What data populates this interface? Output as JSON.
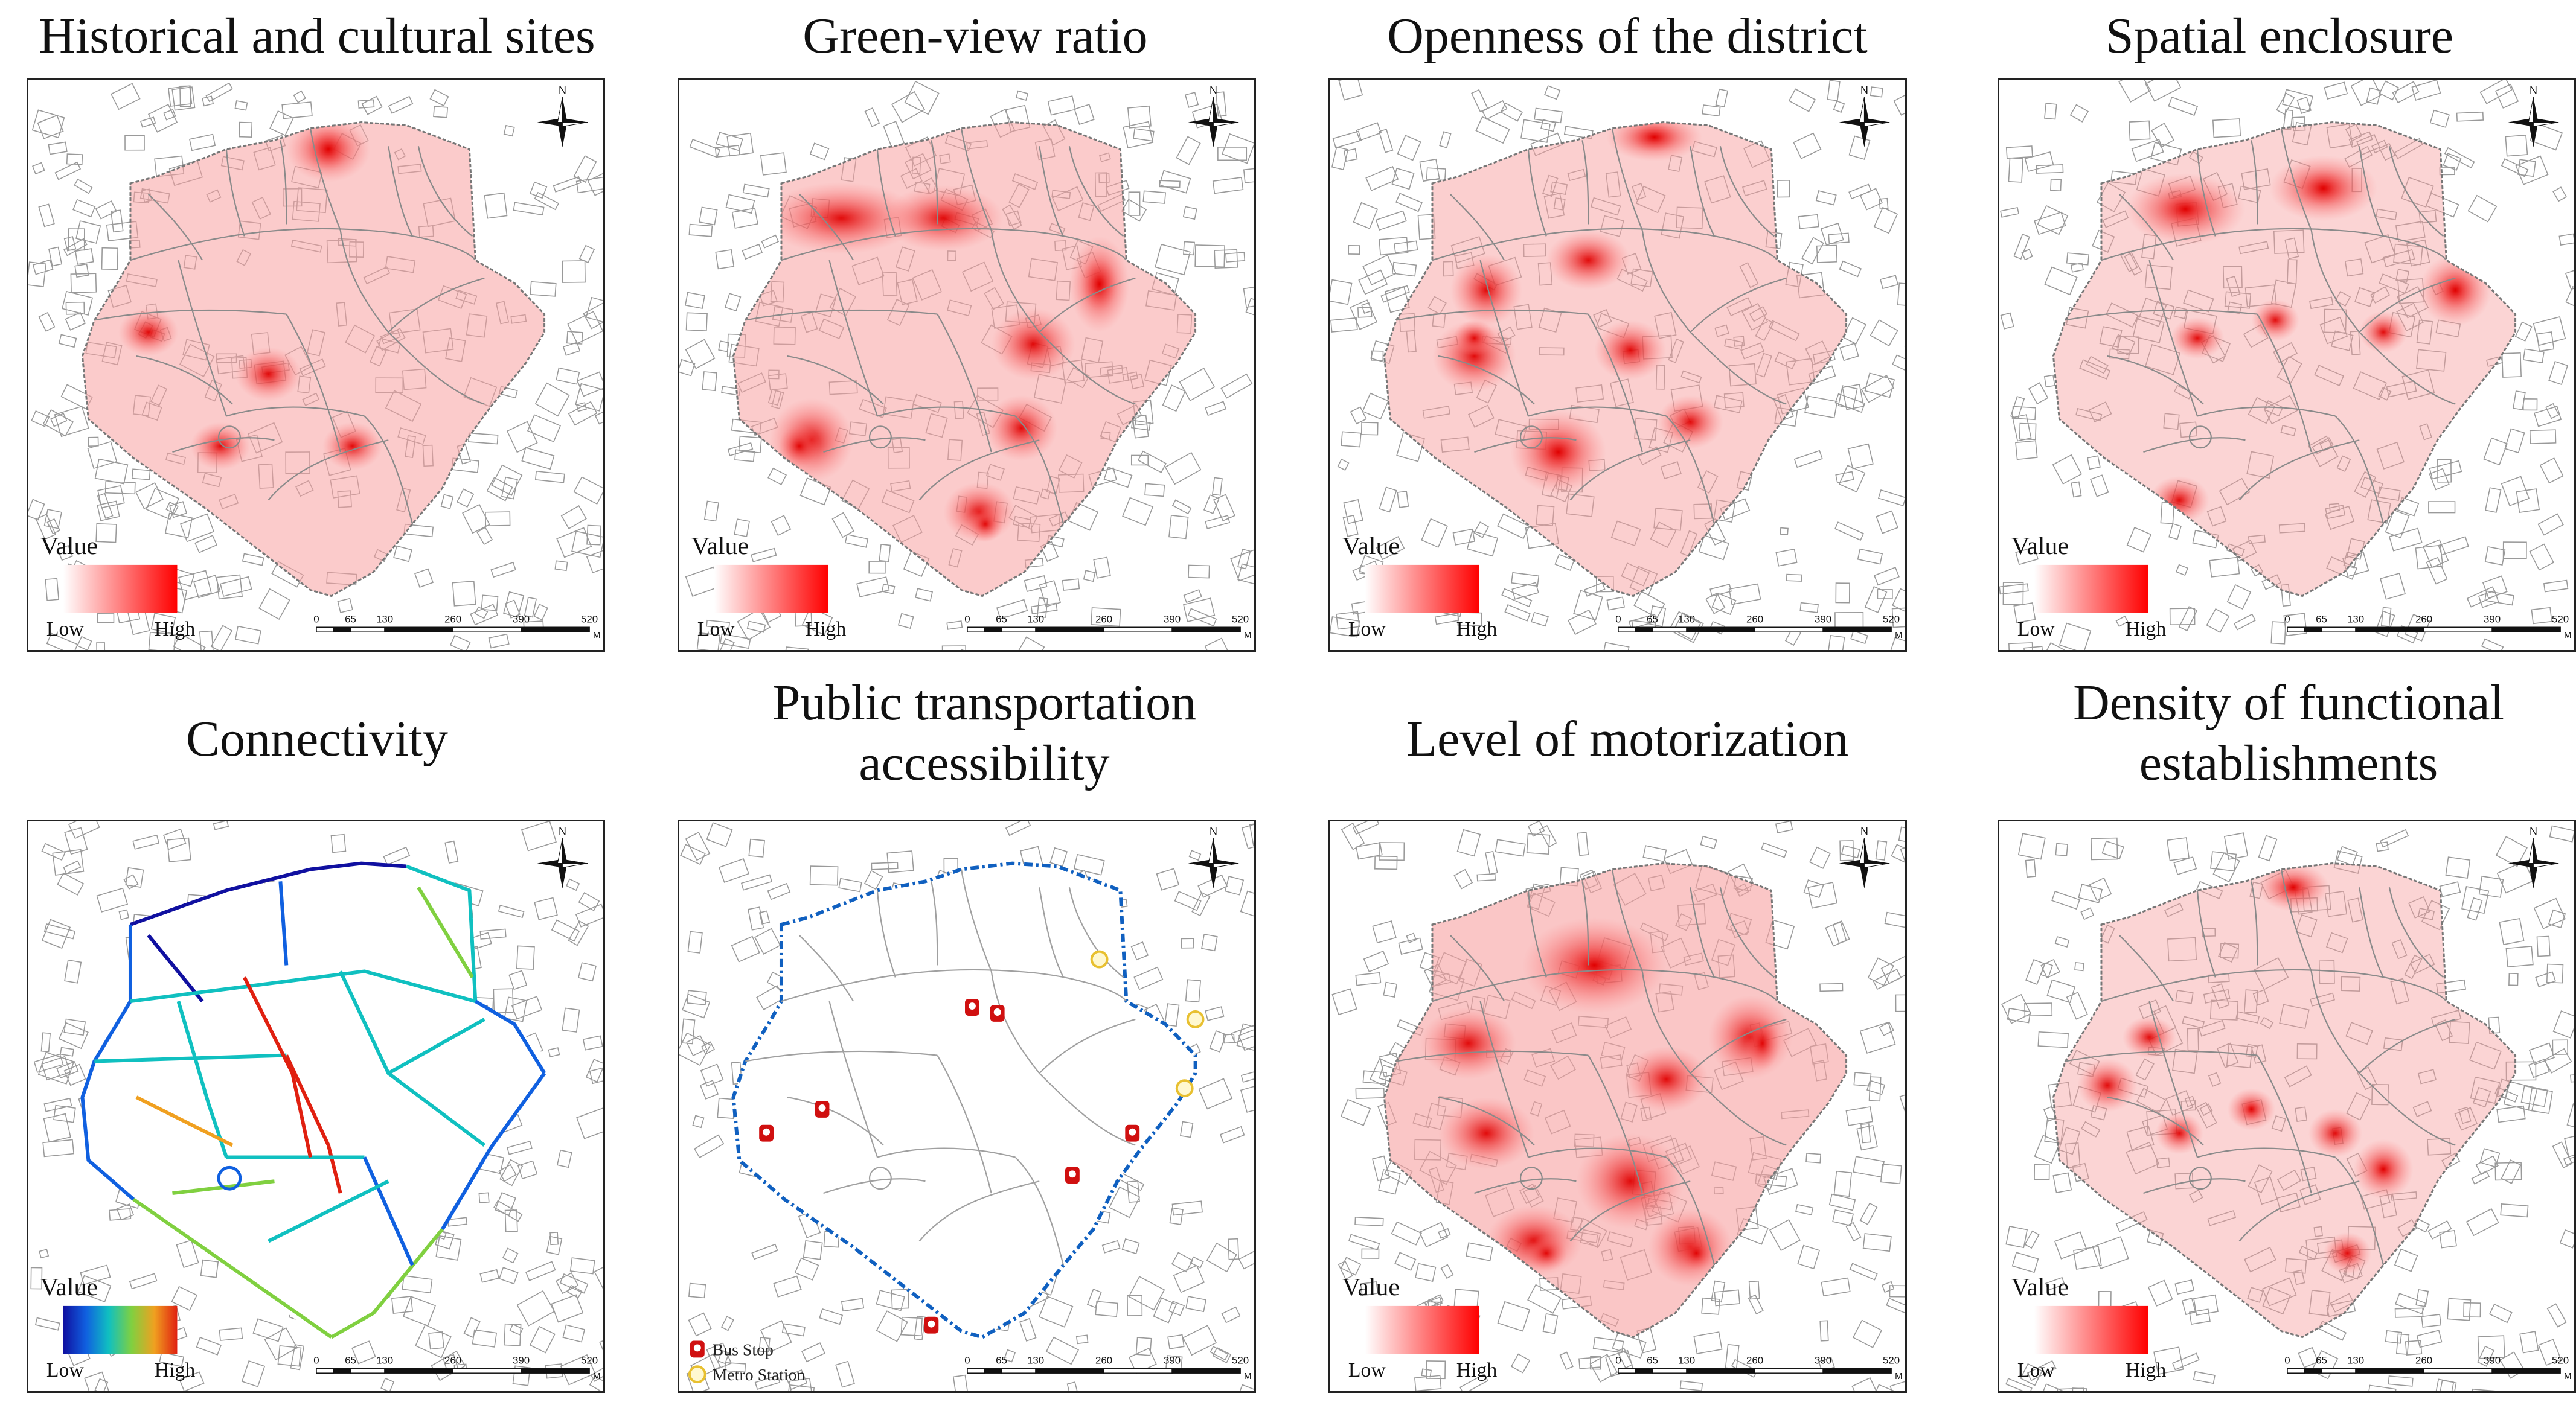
{
  "panels": [
    {
      "title": "Historical and cultural sites",
      "type": "heat"
    },
    {
      "title": "Green-view ratio",
      "type": "heat"
    },
    {
      "title": "Openness of the district",
      "type": "heat"
    },
    {
      "title": "Spatial enclosure",
      "type": "heat"
    },
    {
      "title": "Connectivity",
      "type": "network"
    },
    {
      "title": "Public transportation accessibility",
      "type": "poi"
    },
    {
      "title": "Level of motorization",
      "type": "heat"
    },
    {
      "title": "Density of functional establishments",
      "type": "heat"
    }
  ],
  "legend": {
    "title": "Value",
    "low": "Low",
    "high": "High"
  },
  "scale_bar": {
    "ticks": [
      "0",
      "65",
      "130",
      "260",
      "390",
      "520"
    ],
    "unit": "M"
  },
  "north_label": "N",
  "poi_legend": {
    "bus": "Bus Stop",
    "metro": "Metro Station"
  },
  "colors": {
    "heat_low": "#ffe0e0",
    "heat_high": "#ff0000",
    "connectivity_gradient": [
      "#1010a0",
      "#1060e0",
      "#10c0c0",
      "#80d040",
      "#f0a020",
      "#e02010"
    ],
    "bus_stop": "#d01010",
    "metro_station": "#e8c030",
    "boundary_dashed": "#1060c0"
  }
}
